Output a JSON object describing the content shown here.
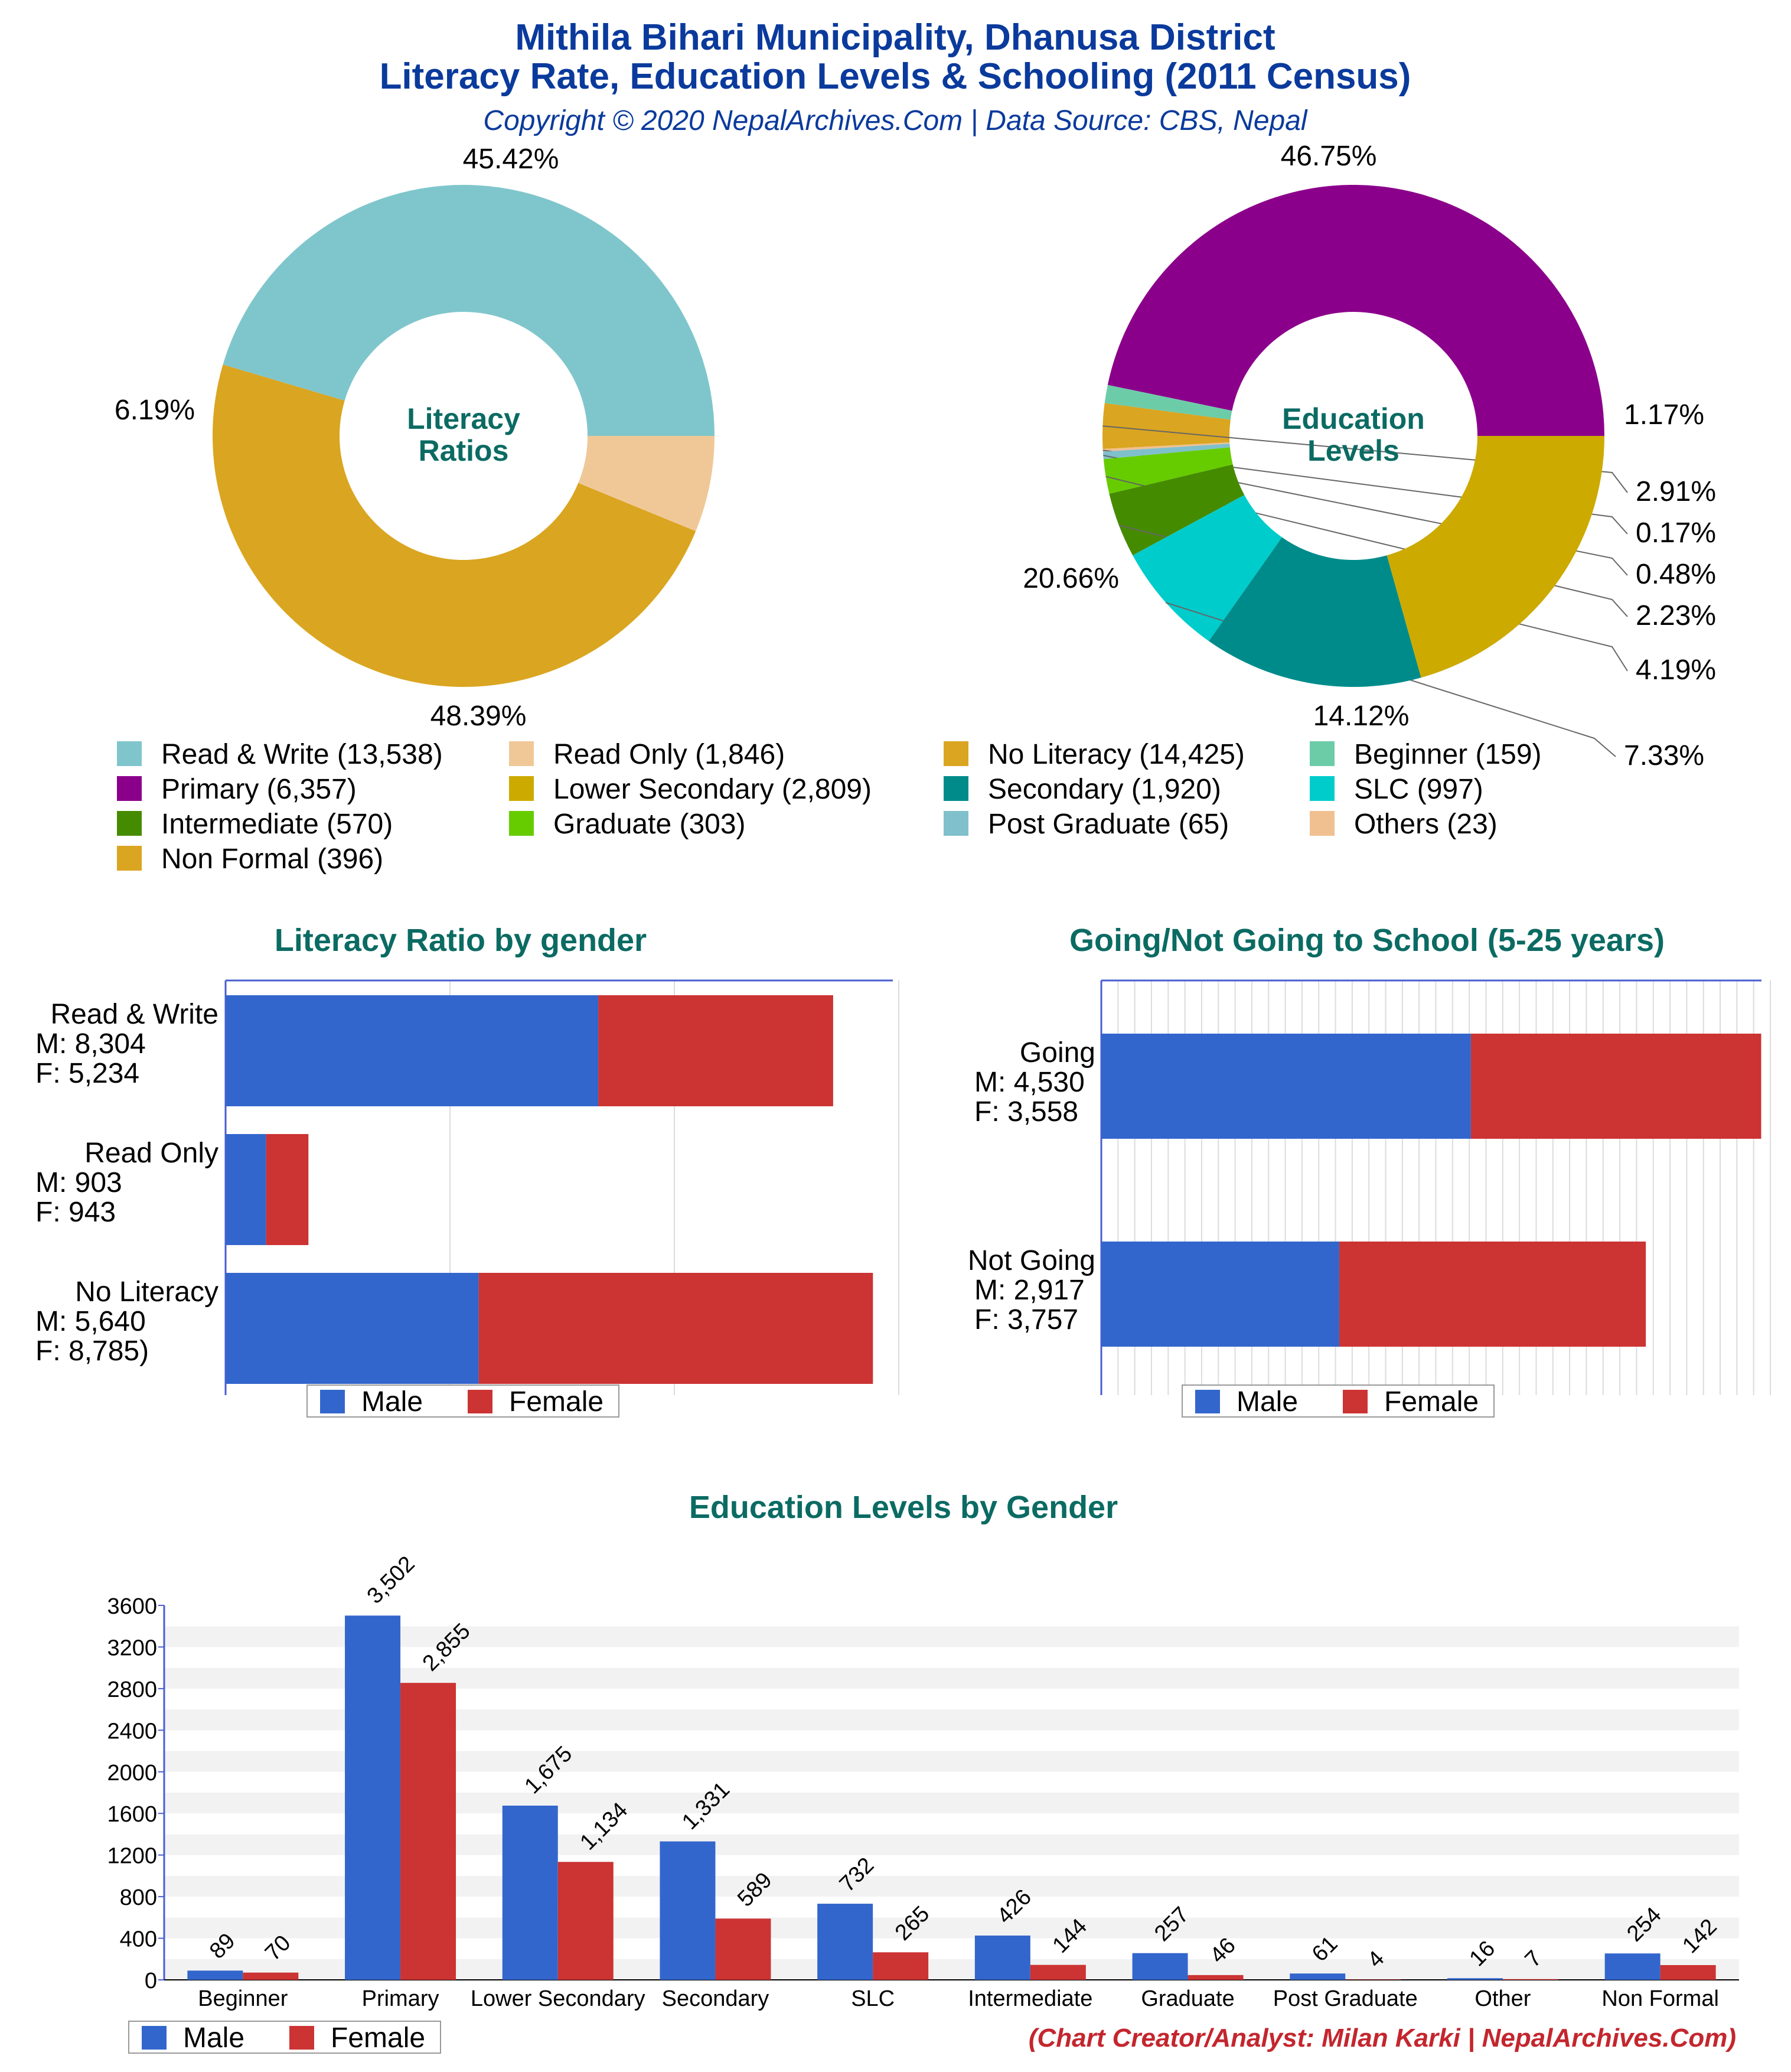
{
  "header": {
    "title_line1": "Mithila Bihari Municipality, Dhanusa District",
    "title_line2": "Literacy Rate, Education Levels & Schooling (2011 Census)",
    "subtitle": "Copyright © 2020 NepalArchives.Com | Data Source: CBS, Nepal"
  },
  "colors": {
    "male": "#3366cc",
    "female": "#cc3333",
    "read_write": "#7fc6cc",
    "read_only": "#f0c898",
    "no_literacy": "#daa520",
    "beginner": "#6ccca8",
    "primary": "#8b008b",
    "lower_secondary": "#ccaa00",
    "secondary": "#008b8b",
    "slc": "#00cccc",
    "intermediate": "#458b00",
    "graduate": "#66cc00",
    "post_graduate": "#7fc0cc",
    "others": "#f0c090",
    "non_formal": "#daa520"
  },
  "chart_data": [
    {
      "id": "literacy_ratios",
      "type": "pie",
      "center_label": [
        "Literacy",
        "Ratios"
      ],
      "slices": [
        {
          "label": "Read & Write",
          "value": 13538,
          "pct": "45.42%",
          "color": "#7fc6cc"
        },
        {
          "label": "No Literacy",
          "value": 14425,
          "pct": "48.39%",
          "color": "#daa520"
        },
        {
          "label": "Read Only",
          "value": 1846,
          "pct": "6.19%",
          "color": "#f0c898"
        }
      ]
    },
    {
      "id": "education_levels",
      "type": "pie",
      "center_label": [
        "Education",
        "Levels"
      ],
      "slices": [
        {
          "label": "Primary",
          "value": 6357,
          "pct": "46.75%",
          "color": "#8b008b"
        },
        {
          "label": "Beginner",
          "value": 159,
          "pct": "1.17%",
          "color": "#6ccca8"
        },
        {
          "label": "Non Formal",
          "value": 396,
          "pct": "2.91%",
          "color": "#daa520"
        },
        {
          "label": "Others",
          "value": 23,
          "pct": "0.17%",
          "color": "#f0c090"
        },
        {
          "label": "Post Graduate",
          "value": 65,
          "pct": "0.48%",
          "color": "#7fc0cc"
        },
        {
          "label": "Graduate",
          "value": 303,
          "pct": "2.23%",
          "color": "#66cc00"
        },
        {
          "label": "Intermediate",
          "value": 570,
          "pct": "4.19%",
          "color": "#458b00"
        },
        {
          "label": "SLC",
          "value": 997,
          "pct": "7.33%",
          "color": "#00cccc"
        },
        {
          "label": "Secondary",
          "value": 1920,
          "pct": "14.12%",
          "color": "#008b8b"
        },
        {
          "label": "Lower Secondary",
          "value": 2809,
          "pct": "20.66%",
          "color": "#ccaa00"
        }
      ]
    },
    {
      "id": "literacy_by_gender",
      "type": "bar",
      "orientation": "horizontal",
      "stacked": true,
      "title": "Literacy Ratio by gender",
      "categories": [
        {
          "lines": [
            "Read & Write",
            "M: 8,304",
            "F: 5,234"
          ],
          "male": 8304,
          "female": 5234
        },
        {
          "lines": [
            "Read Only",
            "M: 903",
            "F: 943"
          ],
          "male": 903,
          "female": 943
        },
        {
          "lines": [
            "No Literacy",
            "M: 5,640",
            "F: 8,785)"
          ],
          "male": 5640,
          "female": 8785
        }
      ],
      "xlim": [
        0,
        15000
      ],
      "legend": [
        "Male",
        "Female"
      ]
    },
    {
      "id": "school_going",
      "type": "bar",
      "orientation": "horizontal",
      "stacked": true,
      "title": "Going/Not Going to School (5-25 years)",
      "categories": [
        {
          "lines": [
            "Going",
            "M: 4,530",
            "F: 3,558"
          ],
          "male": 4530,
          "female": 3558
        },
        {
          "lines": [
            "Not Going",
            "M: 2,917",
            "F: 3,757"
          ],
          "male": 2917,
          "female": 3757
        }
      ],
      "xlim": [
        0,
        8200
      ],
      "legend": [
        "Male",
        "Female"
      ]
    },
    {
      "id": "education_by_gender",
      "type": "bar",
      "title": "Education Levels by Gender",
      "categories": [
        "Beginner",
        "Primary",
        "Lower Secondary",
        "Secondary",
        "SLC",
        "Intermediate",
        "Graduate",
        "Post Graduate",
        "Other",
        "Non Formal"
      ],
      "series": [
        {
          "name": "Male",
          "values": [
            89,
            3502,
            1675,
            1331,
            732,
            426,
            257,
            61,
            16,
            254
          ],
          "labels": [
            "89",
            "3,502",
            "1,675",
            "1,331",
            "732",
            "426",
            "257",
            "61",
            "16",
            "254"
          ]
        },
        {
          "name": "Female",
          "values": [
            70,
            2855,
            1134,
            589,
            265,
            144,
            46,
            4,
            7,
            142
          ],
          "labels": [
            "70",
            "2,855",
            "1,134",
            "589",
            "265",
            "144",
            "46",
            "4",
            "7",
            "142"
          ]
        }
      ],
      "yticks": [
        "0",
        "400",
        "800",
        "1200",
        "1600",
        "2000",
        "2400",
        "2800",
        "3200",
        "3600"
      ],
      "ylim": [
        0,
        3600
      ],
      "legend": [
        "Male",
        "Female"
      ]
    }
  ],
  "legend_items": [
    {
      "label": "Read & Write (13,538)",
      "color": "#7fc6cc"
    },
    {
      "label": "Read Only (1,846)",
      "color": "#f0c898"
    },
    {
      "label": "No Literacy (14,425)",
      "color": "#daa520"
    },
    {
      "label": "Beginner (159)",
      "color": "#6ccca8"
    },
    {
      "label": "Primary (6,357)",
      "color": "#8b008b"
    },
    {
      "label": "Lower Secondary (2,809)",
      "color": "#ccaa00"
    },
    {
      "label": "Secondary (1,920)",
      "color": "#008b8b"
    },
    {
      "label": "SLC (997)",
      "color": "#00cccc"
    },
    {
      "label": "Intermediate (570)",
      "color": "#458b00"
    },
    {
      "label": "Graduate (303)",
      "color": "#66cc00"
    },
    {
      "label": "Post Graduate (65)",
      "color": "#7fc0cc"
    },
    {
      "label": "Others (23)",
      "color": "#f0c090"
    },
    {
      "label": "Non Formal (396)",
      "color": "#daa520"
    }
  ],
  "footer": {
    "credit": "(Chart Creator/Analyst: Milan Karki | NepalArchives.Com)"
  }
}
